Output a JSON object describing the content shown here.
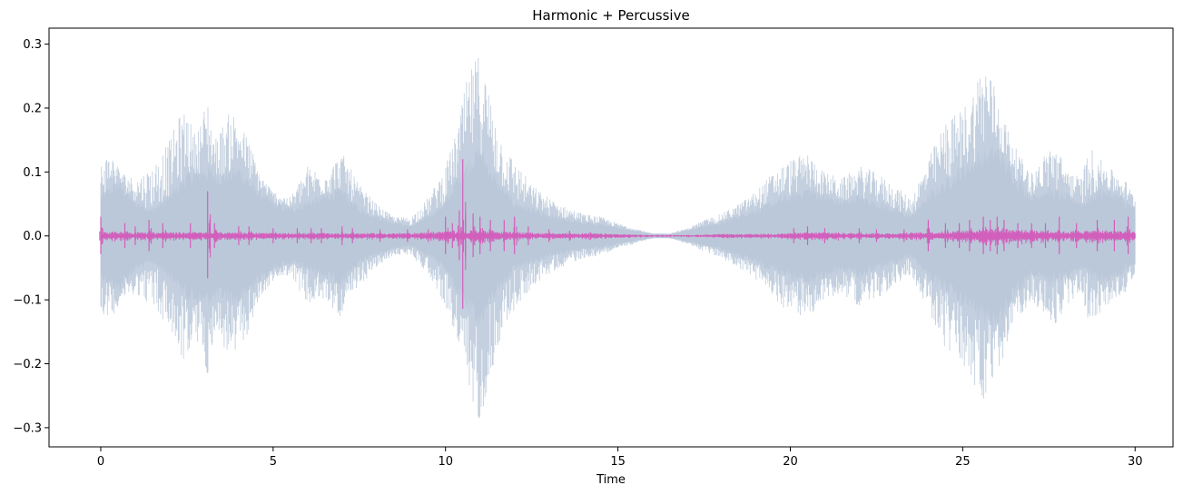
{
  "chart_data": {
    "type": "area",
    "title": "Harmonic + Percussive",
    "xlabel": "Time",
    "ylabel": "",
    "xlim": [
      -1.5,
      31.1
    ],
    "ylim": [
      -0.33,
      0.325
    ],
    "x_ticks": [
      0,
      5,
      10,
      15,
      20,
      25,
      30
    ],
    "x_tick_labels": [
      "0",
      "5",
      "10",
      "15",
      "20",
      "25",
      "30"
    ],
    "y_ticks": [
      -0.3,
      -0.2,
      -0.1,
      0.0,
      0.1,
      0.2,
      0.3
    ],
    "y_tick_labels": [
      "−0.3",
      "−0.2",
      "−0.1",
      "0.0",
      "0.1",
      "0.2",
      "0.3"
    ],
    "grid": false,
    "legend": "none",
    "series": [
      {
        "role": "harmonic",
        "color": "#b0c0d4",
        "fill_color": "#d9dee7",
        "outer_envelope": {
          "x": [
            0,
            0.3,
            0.6,
            1.0,
            1.5,
            2.0,
            2.3,
            2.5,
            2.7,
            2.9,
            3.1,
            3.3,
            3.5,
            3.8,
            4.0,
            4.3,
            4.6,
            5.0,
            5.5,
            6.0,
            6.5,
            7.0,
            7.5,
            8.0,
            8.5,
            9.0,
            9.5,
            10.0,
            10.3,
            10.6,
            10.8,
            11.0,
            11.3,
            11.7,
            12.0,
            12.5,
            13.0,
            13.5,
            14.0,
            14.5,
            15.0,
            15.5,
            16.0,
            16.5,
            17.0,
            17.5,
            18.0,
            18.5,
            19.0,
            19.5,
            20.0,
            20.5,
            21.0,
            21.5,
            22.0,
            22.5,
            23.0,
            23.5,
            24.0,
            24.5,
            25.0,
            25.3,
            25.6,
            25.8,
            26.0,
            26.3,
            26.6,
            27.0,
            27.3,
            27.6,
            28.0,
            28.4,
            28.7,
            29.0,
            29.4,
            29.7,
            30.0
          ],
          "y": [
            0.12,
            0.13,
            0.1,
            0.09,
            0.11,
            0.15,
            0.19,
            0.2,
            0.16,
            0.18,
            0.22,
            0.15,
            0.17,
            0.2,
            0.18,
            0.15,
            0.1,
            0.07,
            0.06,
            0.11,
            0.1,
            0.13,
            0.08,
            0.05,
            0.03,
            0.03,
            0.06,
            0.11,
            0.16,
            0.24,
            0.27,
            0.29,
            0.22,
            0.14,
            0.12,
            0.08,
            0.06,
            0.045,
            0.035,
            0.03,
            0.02,
            0.012,
            0.004,
            0.004,
            0.012,
            0.025,
            0.035,
            0.05,
            0.07,
            0.1,
            0.12,
            0.13,
            0.1,
            0.09,
            0.11,
            0.1,
            0.08,
            0.06,
            0.12,
            0.18,
            0.2,
            0.23,
            0.28,
            0.26,
            0.22,
            0.17,
            0.13,
            0.1,
            0.12,
            0.15,
            0.11,
            0.09,
            0.14,
            0.12,
            0.1,
            0.09,
            0.06
          ]
        },
        "inner_envelope": {
          "x": [
            0,
            0.5,
            1.0,
            1.5,
            2.0,
            2.5,
            3.0,
            3.5,
            4.0,
            4.5,
            5.0,
            5.5,
            6.0,
            6.5,
            7.0,
            7.5,
            8.0,
            8.5,
            9.0,
            9.5,
            10.0,
            10.5,
            11.0,
            11.5,
            12.0,
            12.5,
            13.0,
            13.5,
            14.0,
            14.5,
            15.0,
            15.5,
            16.0,
            16.5,
            17.0,
            17.5,
            18.0,
            18.5,
            19.0,
            19.5,
            20.0,
            20.5,
            21.0,
            21.5,
            22.0,
            22.5,
            23.0,
            23.5,
            24.0,
            24.5,
            25.0,
            25.5,
            26.0,
            26.5,
            27.0,
            27.5,
            28.0,
            28.5,
            29.0,
            29.5,
            30.0
          ],
          "y": [
            0.06,
            0.08,
            0.05,
            0.04,
            0.06,
            0.09,
            0.1,
            0.09,
            0.1,
            0.07,
            0.05,
            0.04,
            0.05,
            0.06,
            0.07,
            0.04,
            0.03,
            0.02,
            0.015,
            0.03,
            0.05,
            0.1,
            0.13,
            0.08,
            0.05,
            0.04,
            0.03,
            0.025,
            0.02,
            0.018,
            0.012,
            0.008,
            0.003,
            0.003,
            0.008,
            0.015,
            0.02,
            0.03,
            0.04,
            0.05,
            0.06,
            0.07,
            0.06,
            0.05,
            0.06,
            0.05,
            0.04,
            0.03,
            0.06,
            0.08,
            0.1,
            0.12,
            0.13,
            0.09,
            0.06,
            0.07,
            0.06,
            0.05,
            0.07,
            0.06,
            0.04
          ]
        }
      },
      {
        "role": "percussive",
        "color": "#d25fbc",
        "baseline_envelope": {
          "x": [
            0,
            1,
            2,
            3,
            4,
            5,
            6,
            7,
            8,
            9,
            10,
            11,
            12,
            13,
            14,
            15,
            16,
            17,
            18,
            19,
            20,
            21,
            22,
            23,
            24,
            25,
            26,
            27,
            28,
            29,
            30
          ],
          "y": [
            0.005,
            0.004,
            0.004,
            0.004,
            0.004,
            0.003,
            0.003,
            0.003,
            0.003,
            0.003,
            0.005,
            0.006,
            0.004,
            0.003,
            0.003,
            0.002,
            0.001,
            0.001,
            0.002,
            0.002,
            0.003,
            0.004,
            0.003,
            0.003,
            0.004,
            0.006,
            0.008,
            0.006,
            0.005,
            0.006,
            0.005
          ]
        },
        "peaks": {
          "x": [
            0.0,
            0.7,
            1.0,
            1.4,
            1.8,
            2.6,
            3.1,
            3.3,
            4.0,
            4.3,
            5.0,
            5.7,
            6.1,
            6.4,
            7.0,
            7.3,
            8.1,
            8.9,
            9.5,
            10.0,
            10.2,
            10.4,
            10.5,
            10.8,
            11.0,
            11.3,
            11.7,
            12.0,
            12.4,
            13.0,
            13.6,
            14.2,
            20.1,
            20.5,
            21.0,
            22.0,
            22.5,
            23.3,
            24.0,
            24.5,
            24.9,
            25.2,
            25.6,
            25.8,
            26.0,
            26.2,
            26.6,
            27.0,
            27.4,
            27.8,
            28.3,
            28.9,
            29.4,
            29.8
          ],
          "y": [
            0.03,
            0.02,
            0.015,
            0.025,
            0.02,
            0.02,
            0.07,
            0.02,
            0.015,
            0.015,
            0.012,
            0.012,
            0.012,
            0.012,
            0.015,
            0.012,
            0.01,
            0.01,
            0.01,
            0.03,
            0.02,
            0.04,
            0.12,
            0.035,
            0.03,
            0.025,
            0.025,
            0.03,
            0.015,
            0.01,
            0.008,
            0.006,
            0.012,
            0.015,
            0.012,
            0.012,
            0.01,
            0.01,
            0.025,
            0.02,
            0.02,
            0.025,
            0.03,
            0.025,
            0.03,
            0.025,
            0.02,
            0.02,
            0.02,
            0.03,
            0.02,
            0.025,
            0.025,
            0.03
          ]
        }
      }
    ]
  }
}
